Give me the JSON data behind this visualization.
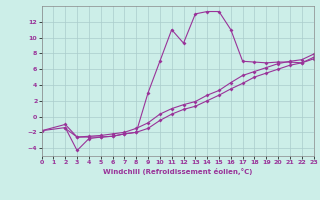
{
  "xlabel": "Windchill (Refroidissement éolien,°C)",
  "bg_color": "#cceee8",
  "grid_color": "#aacccc",
  "line_color": "#993399",
  "xlim": [
    0,
    23
  ],
  "ylim": [
    -5,
    14
  ],
  "xticks": [
    0,
    1,
    2,
    3,
    4,
    5,
    6,
    7,
    8,
    9,
    10,
    11,
    12,
    13,
    14,
    15,
    16,
    17,
    18,
    19,
    20,
    21,
    22,
    23
  ],
  "yticks": [
    -4,
    -2,
    0,
    2,
    4,
    6,
    8,
    10,
    12
  ],
  "series1_x": [
    2,
    3,
    4,
    5,
    6,
    7,
    8,
    9,
    10,
    11,
    12,
    13,
    14,
    15,
    16,
    17,
    18,
    19,
    20,
    21,
    22,
    23
  ],
  "series1_y": [
    -1.5,
    -2.6,
    -2.6,
    -2.6,
    -2.5,
    -2.2,
    -2.0,
    3.0,
    7.0,
    11.0,
    9.3,
    13.0,
    13.3,
    13.3,
    11.0,
    7.0,
    6.9,
    6.8,
    6.9,
    6.9,
    6.8,
    7.3
  ],
  "series2_x": [
    0,
    2,
    3,
    4,
    5,
    6,
    7,
    8,
    9,
    10,
    11,
    12,
    13,
    14,
    15,
    16,
    17,
    18,
    19,
    20,
    21,
    22,
    23
  ],
  "series2_y": [
    -1.8,
    -1.4,
    -4.3,
    -2.8,
    -2.6,
    -2.5,
    -2.2,
    -2.0,
    -1.5,
    -0.5,
    0.3,
    0.9,
    1.3,
    2.0,
    2.7,
    3.5,
    4.2,
    5.0,
    5.5,
    6.0,
    6.5,
    6.8,
    7.5
  ],
  "series3_x": [
    0,
    2,
    3,
    4,
    5,
    6,
    7,
    8,
    9,
    10,
    11,
    12,
    13,
    14,
    15,
    16,
    17,
    18,
    19,
    20,
    21,
    22,
    23
  ],
  "series3_y": [
    -1.8,
    -1.0,
    -2.6,
    -2.5,
    -2.4,
    -2.2,
    -2.0,
    -1.5,
    -0.8,
    0.3,
    1.0,
    1.5,
    1.9,
    2.7,
    3.3,
    4.3,
    5.2,
    5.7,
    6.2,
    6.7,
    7.0,
    7.2,
    7.9
  ]
}
